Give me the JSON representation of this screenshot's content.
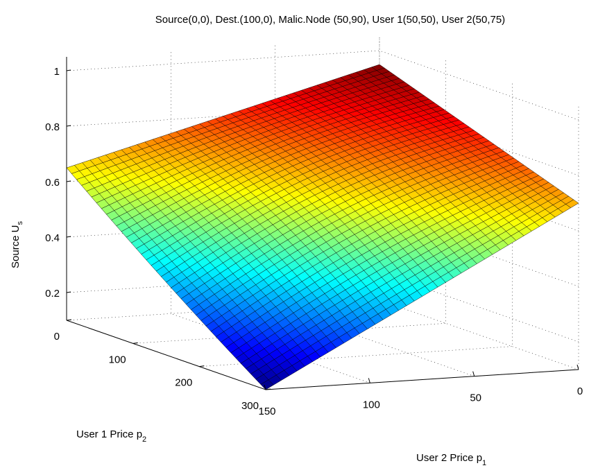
{
  "chart_data": {
    "type": "surface",
    "title": "Source(0,0), Dest.(100,0), Malic.Node (50,90), User 1(50,50), User 2(50,75)",
    "xlabel": "User 2 Price p",
    "xlabel_sub": "1",
    "ylabel": "User 1 Price p",
    "ylabel_sub": "2",
    "zlabel": "Source U",
    "zlabel_sub": "s",
    "xlim": [
      0,
      150
    ],
    "ylim": [
      0,
      300
    ],
    "zlim": [
      0.1,
      1.05
    ],
    "x_ticks": [
      "0",
      "50",
      "100",
      "150"
    ],
    "y_ticks": [
      "0",
      "100",
      "200",
      "300"
    ],
    "z_ticks": [
      "0.2",
      "0.4",
      "0.6",
      "0.8",
      "1"
    ],
    "grid": true,
    "colormap": "jet",
    "surface_corners": [
      {
        "x": 0,
        "y": 0,
        "z": 0.95
      },
      {
        "x": 0,
        "y": 150,
        "z": 0.75
      },
      {
        "x": 0,
        "y": 300,
        "z": 0.7
      },
      {
        "x": 50,
        "y": 0,
        "z": 0.8
      },
      {
        "x": 150,
        "y": 0,
        "z": 0.65
      },
      {
        "x": 150,
        "y": 300,
        "z": 0.1
      },
      {
        "x": 150,
        "y": 200,
        "z": 0.13
      },
      {
        "x": 50,
        "y": 300,
        "z": 0.3
      }
    ],
    "mesh": {
      "nx": 40,
      "ny": 40
    }
  }
}
